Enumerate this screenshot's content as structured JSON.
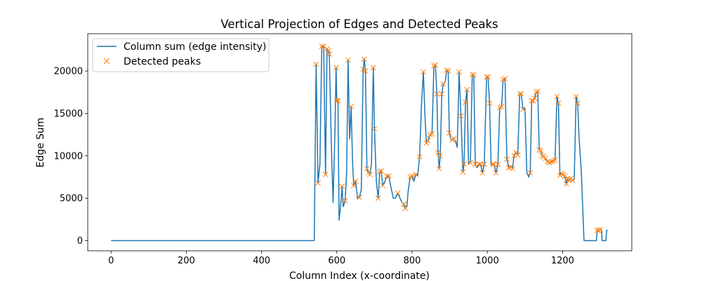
{
  "chart_data": {
    "type": "line",
    "title": "Vertical Projection of Edges and Detected Peaks",
    "xlabel": "Column Index (x-coordinate)",
    "ylabel": "Edge Sum",
    "xlim": [
      -62,
      1384
    ],
    "ylim": [
      -1200,
      24400
    ],
    "xticks": [
      0,
      200,
      400,
      600,
      800,
      1000,
      1200
    ],
    "yticks": [
      0,
      5000,
      10000,
      15000,
      20000
    ],
    "grid": false,
    "legend_position": "upper left",
    "colors": {
      "line": "#1f77b4",
      "peaks": "#ff7f0e"
    },
    "series": [
      {
        "name": "Column sum (edge intensity)",
        "kind": "line",
        "points": [
          [
            0,
            0
          ],
          [
            540,
            0
          ],
          [
            545,
            20800
          ],
          [
            550,
            6800
          ],
          [
            555,
            9000
          ],
          [
            560,
            22900
          ],
          [
            565,
            22900
          ],
          [
            570,
            7800
          ],
          [
            574,
            22600
          ],
          [
            578,
            22400
          ],
          [
            580,
            22000
          ],
          [
            585,
            12000
          ],
          [
            590,
            4500
          ],
          [
            595,
            13000
          ],
          [
            598,
            20400
          ],
          [
            600,
            16500
          ],
          [
            603,
            16500
          ],
          [
            606,
            2400
          ],
          [
            610,
            4000
          ],
          [
            614,
            6400
          ],
          [
            617,
            4000
          ],
          [
            622,
            4700
          ],
          [
            626,
            8000
          ],
          [
            630,
            21300
          ],
          [
            634,
            12000
          ],
          [
            638,
            15800
          ],
          [
            642,
            9000
          ],
          [
            645,
            6500
          ],
          [
            650,
            7000
          ],
          [
            655,
            5000
          ],
          [
            660,
            5100
          ],
          [
            665,
            6000
          ],
          [
            670,
            20200
          ],
          [
            673,
            21400
          ],
          [
            676,
            20000
          ],
          [
            680,
            8500
          ],
          [
            684,
            8000
          ],
          [
            688,
            7800
          ],
          [
            692,
            9000
          ],
          [
            697,
            20400
          ],
          [
            700,
            13200
          ],
          [
            705,
            7000
          ],
          [
            710,
            5000
          ],
          [
            714,
            8100
          ],
          [
            718,
            8200
          ],
          [
            722,
            6500
          ],
          [
            728,
            7000
          ],
          [
            733,
            7600
          ],
          [
            738,
            7600
          ],
          [
            743,
            6500
          ],
          [
            750,
            5000
          ],
          [
            756,
            5000
          ],
          [
            762,
            5600
          ],
          [
            768,
            5000
          ],
          [
            773,
            4500
          ],
          [
            778,
            4300
          ],
          [
            782,
            3800
          ],
          [
            786,
            4000
          ],
          [
            790,
            6000
          ],
          [
            795,
            7500
          ],
          [
            800,
            7600
          ],
          [
            805,
            7000
          ],
          [
            810,
            7800
          ],
          [
            815,
            7700
          ],
          [
            820,
            9900
          ],
          [
            825,
            16000
          ],
          [
            830,
            19900
          ],
          [
            834,
            15000
          ],
          [
            838,
            11500
          ],
          [
            842,
            11800
          ],
          [
            848,
            12500
          ],
          [
            853,
            12600
          ],
          [
            858,
            20600
          ],
          [
            862,
            20700
          ],
          [
            866,
            17300
          ],
          [
            869,
            10400
          ],
          [
            872,
            8500
          ],
          [
            875,
            10000
          ],
          [
            879,
            17300
          ],
          [
            883,
            18500
          ],
          [
            888,
            18700
          ],
          [
            892,
            20100
          ],
          [
            896,
            20000
          ],
          [
            899,
            12700
          ],
          [
            903,
            12000
          ],
          [
            907,
            11900
          ],
          [
            911,
            12000
          ],
          [
            915,
            11800
          ],
          [
            920,
            11000
          ],
          [
            925,
            19900
          ],
          [
            930,
            14700
          ],
          [
            935,
            8100
          ],
          [
            938,
            9000
          ],
          [
            942,
            16300
          ],
          [
            946,
            17800
          ],
          [
            950,
            9000
          ],
          [
            955,
            9200
          ],
          [
            960,
            19600
          ],
          [
            964,
            19500
          ],
          [
            968,
            9000
          ],
          [
            973,
            8600
          ],
          [
            977,
            9000
          ],
          [
            982,
            9000
          ],
          [
            987,
            8000
          ],
          [
            992,
            9000
          ],
          [
            998,
            19300
          ],
          [
            1002,
            19300
          ],
          [
            1006,
            16200
          ],
          [
            1010,
            9000
          ],
          [
            1014,
            9000
          ],
          [
            1018,
            9000
          ],
          [
            1023,
            8000
          ],
          [
            1028,
            9000
          ],
          [
            1033,
            15700
          ],
          [
            1038,
            15800
          ],
          [
            1042,
            19000
          ],
          [
            1047,
            19100
          ],
          [
            1052,
            9600
          ],
          [
            1057,
            8600
          ],
          [
            1062,
            8700
          ],
          [
            1067,
            8500
          ],
          [
            1071,
            10000
          ],
          [
            1076,
            10400
          ],
          [
            1081,
            10100
          ],
          [
            1086,
            17300
          ],
          [
            1090,
            17300
          ],
          [
            1095,
            15500
          ],
          [
            1100,
            15600
          ],
          [
            1105,
            8000
          ],
          [
            1110,
            7500
          ],
          [
            1114,
            8000
          ],
          [
            1118,
            16500
          ],
          [
            1122,
            16500
          ],
          [
            1126,
            16800
          ],
          [
            1130,
            17500
          ],
          [
            1134,
            17600
          ],
          [
            1138,
            10700
          ],
          [
            1142,
            10600
          ],
          [
            1146,
            10000
          ],
          [
            1150,
            9900
          ],
          [
            1155,
            9700
          ],
          [
            1160,
            9300
          ],
          [
            1165,
            9200
          ],
          [
            1170,
            9300
          ],
          [
            1175,
            9400
          ],
          [
            1180,
            9500
          ],
          [
            1185,
            17000
          ],
          [
            1189,
            16200
          ],
          [
            1193,
            7700
          ],
          [
            1197,
            7900
          ],
          [
            1202,
            7800
          ],
          [
            1206,
            7600
          ],
          [
            1210,
            6700
          ],
          [
            1214,
            7300
          ],
          [
            1218,
            7200
          ],
          [
            1222,
            7300
          ],
          [
            1226,
            7100
          ],
          [
            1231,
            7200
          ],
          [
            1236,
            17000
          ],
          [
            1240,
            16200
          ],
          [
            1244,
            12000
          ],
          [
            1250,
            8000
          ],
          [
            1257,
            0
          ],
          [
            1290,
            0
          ],
          [
            1292,
            1200
          ],
          [
            1296,
            1200
          ],
          [
            1300,
            1300
          ],
          [
            1304,
            1200
          ],
          [
            1305,
            0
          ],
          [
            1315,
            0
          ],
          [
            1317,
            1200
          ],
          [
            1320,
            1200
          ]
        ]
      },
      {
        "name": "Detected peaks",
        "kind": "markers",
        "points": [
          [
            545,
            20800
          ],
          [
            550,
            6800
          ],
          [
            560,
            22900
          ],
          [
            565,
            22900
          ],
          [
            570,
            7800
          ],
          [
            574,
            22600
          ],
          [
            578,
            22400
          ],
          [
            580,
            22000
          ],
          [
            598,
            20400
          ],
          [
            600,
            16500
          ],
          [
            603,
            16500
          ],
          [
            614,
            6400
          ],
          [
            622,
            4700
          ],
          [
            630,
            21300
          ],
          [
            638,
            15800
          ],
          [
            645,
            6500
          ],
          [
            650,
            7000
          ],
          [
            660,
            5100
          ],
          [
            670,
            20200
          ],
          [
            673,
            21400
          ],
          [
            676,
            20000
          ],
          [
            680,
            8500
          ],
          [
            684,
            8000
          ],
          [
            688,
            7800
          ],
          [
            697,
            20400
          ],
          [
            700,
            13200
          ],
          [
            710,
            5000
          ],
          [
            714,
            8100
          ],
          [
            718,
            8200
          ],
          [
            722,
            6500
          ],
          [
            733,
            7600
          ],
          [
            738,
            7600
          ],
          [
            762,
            5600
          ],
          [
            778,
            4300
          ],
          [
            782,
            3800
          ],
          [
            795,
            7500
          ],
          [
            800,
            7600
          ],
          [
            810,
            7800
          ],
          [
            820,
            9900
          ],
          [
            830,
            19900
          ],
          [
            838,
            11500
          ],
          [
            842,
            11800
          ],
          [
            848,
            12500
          ],
          [
            853,
            12600
          ],
          [
            858,
            20600
          ],
          [
            862,
            20700
          ],
          [
            866,
            17300
          ],
          [
            869,
            10400
          ],
          [
            872,
            8500
          ],
          [
            875,
            10000
          ],
          [
            879,
            17300
          ],
          [
            883,
            18500
          ],
          [
            892,
            20100
          ],
          [
            896,
            20000
          ],
          [
            899,
            12700
          ],
          [
            907,
            11900
          ],
          [
            911,
            12000
          ],
          [
            925,
            19900
          ],
          [
            930,
            14700
          ],
          [
            935,
            8100
          ],
          [
            938,
            9000
          ],
          [
            942,
            16300
          ],
          [
            946,
            17800
          ],
          [
            955,
            9200
          ],
          [
            960,
            19600
          ],
          [
            964,
            19500
          ],
          [
            968,
            9000
          ],
          [
            977,
            9000
          ],
          [
            982,
            9000
          ],
          [
            987,
            8000
          ],
          [
            992,
            9000
          ],
          [
            998,
            19300
          ],
          [
            1002,
            19300
          ],
          [
            1006,
            16200
          ],
          [
            1014,
            9000
          ],
          [
            1018,
            9000
          ],
          [
            1023,
            8000
          ],
          [
            1028,
            9000
          ],
          [
            1033,
            15700
          ],
          [
            1038,
            15800
          ],
          [
            1042,
            19000
          ],
          [
            1047,
            19100
          ],
          [
            1052,
            9600
          ],
          [
            1057,
            8600
          ],
          [
            1062,
            8700
          ],
          [
            1067,
            8500
          ],
          [
            1071,
            10000
          ],
          [
            1076,
            10400
          ],
          [
            1081,
            10100
          ],
          [
            1086,
            17300
          ],
          [
            1090,
            17300
          ],
          [
            1095,
            15500
          ],
          [
            1114,
            8000
          ],
          [
            1118,
            16500
          ],
          [
            1122,
            16500
          ],
          [
            1126,
            16800
          ],
          [
            1130,
            17500
          ],
          [
            1134,
            17600
          ],
          [
            1138,
            10700
          ],
          [
            1142,
            10600
          ],
          [
            1146,
            10000
          ],
          [
            1150,
            9900
          ],
          [
            1155,
            9700
          ],
          [
            1160,
            9300
          ],
          [
            1165,
            9200
          ],
          [
            1170,
            9300
          ],
          [
            1175,
            9400
          ],
          [
            1180,
            9500
          ],
          [
            1185,
            17000
          ],
          [
            1189,
            16200
          ],
          [
            1193,
            7700
          ],
          [
            1197,
            7900
          ],
          [
            1202,
            7800
          ],
          [
            1206,
            7600
          ],
          [
            1210,
            6700
          ],
          [
            1214,
            7300
          ],
          [
            1218,
            7200
          ],
          [
            1222,
            7300
          ],
          [
            1226,
            7100
          ],
          [
            1236,
            17000
          ],
          [
            1240,
            16200
          ],
          [
            1292,
            1200
          ],
          [
            1296,
            1200
          ],
          [
            1300,
            1300
          ]
        ]
      }
    ]
  }
}
